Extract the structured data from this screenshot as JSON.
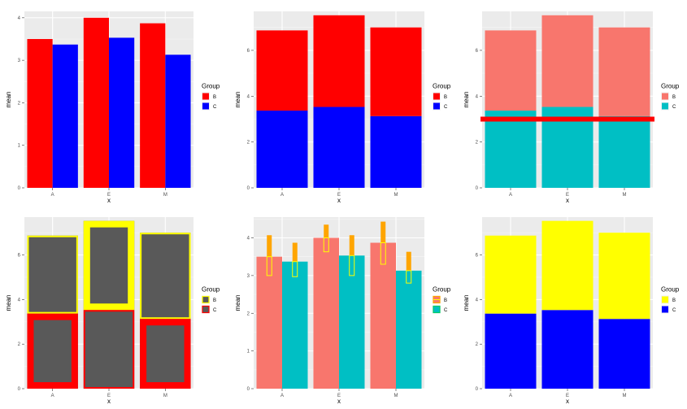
{
  "figure_description": "Six ggplot-style bar chart panels comparing mean by x and Group",
  "chart_data": [
    {
      "panel": "dodged-bar",
      "type": "bar",
      "position": "dodge",
      "categories": [
        "A",
        "E",
        "M"
      ],
      "series": [
        {
          "name": "B",
          "values": [
            3.5,
            4.0,
            3.87
          ],
          "fill": "#ff0000"
        },
        {
          "name": "C",
          "values": [
            3.37,
            3.53,
            3.13
          ],
          "fill": "#0000ff"
        }
      ],
      "xlabel": "x",
      "ylabel": "mean",
      "ylim": [
        0,
        4.15
      ],
      "yticks": [
        "0",
        "1",
        "2",
        "3",
        "4"
      ],
      "legend": {
        "title": "Group",
        "placement": "right"
      },
      "grid": true
    },
    {
      "panel": "stacked-bar",
      "type": "bar",
      "position": "stack",
      "categories": [
        "A",
        "E",
        "M"
      ],
      "series": [
        {
          "name": "B",
          "values": [
            3.5,
            4.0,
            3.87
          ],
          "fill": "#ff0000"
        },
        {
          "name": "C",
          "values": [
            3.37,
            3.53,
            3.13
          ],
          "fill": "#0000ff"
        }
      ],
      "xlabel": "x",
      "ylabel": "mean",
      "ylim": [
        0,
        7.7
      ],
      "yticks": [
        "0",
        "2",
        "4",
        "6"
      ],
      "legend": {
        "title": "Group",
        "placement": "right"
      },
      "grid": true
    },
    {
      "panel": "stacked-bar-hline",
      "type": "bar",
      "position": "stack",
      "categories": [
        "A",
        "E",
        "M"
      ],
      "series": [
        {
          "name": "B",
          "values": [
            3.5,
            4.0,
            3.87
          ],
          "fill": "#f8766d"
        },
        {
          "name": "C",
          "values": [
            3.37,
            3.53,
            3.13
          ],
          "fill": "#00bfc4"
        }
      ],
      "hline": {
        "y": 3.0,
        "color": "#ff0000"
      },
      "xlabel": "x",
      "ylabel": "mean",
      "ylim": [
        0,
        7.7
      ],
      "yticks": [
        "0",
        "2",
        "4",
        "6"
      ],
      "legend": {
        "title": "Group",
        "placement": "right"
      },
      "grid": true
    },
    {
      "panel": "stacked-bar-outlined",
      "type": "bar",
      "position": "stack",
      "categories": [
        "A",
        "E",
        "M"
      ],
      "series": [
        {
          "name": "B",
          "values": [
            3.5,
            4.0,
            3.87
          ],
          "fill": "#595959",
          "outline": "#ffff00"
        },
        {
          "name": "C",
          "values": [
            3.37,
            3.53,
            3.13
          ],
          "fill": "#595959",
          "outline": "#ff0000"
        }
      ],
      "outline_thickness": {
        "B": [
          2,
          8,
          2
        ],
        "C": [
          8,
          2,
          8
        ]
      },
      "xlabel": "x",
      "ylabel": "mean",
      "ylim": [
        0,
        7.7
      ],
      "yticks": [
        "0",
        "2",
        "4",
        "6"
      ],
      "legend": {
        "title": "Group",
        "placement": "right"
      },
      "grid": true
    },
    {
      "panel": "dodged-bar-errorbars",
      "type": "bar",
      "position": "dodge",
      "categories": [
        "A",
        "E",
        "M"
      ],
      "series": [
        {
          "name": "B",
          "values": [
            3.5,
            4.0,
            3.87
          ],
          "fill": "#f8766d",
          "outline": "#ffa500"
        },
        {
          "name": "C",
          "values": [
            3.37,
            3.53,
            3.13
          ],
          "fill": "#00bfc4",
          "outline": "#00cc66"
        }
      ],
      "error_bars": {
        "B": [
          [
            3.0,
            4.07
          ],
          [
            3.63,
            4.35
          ],
          [
            3.3,
            4.43
          ]
        ],
        "C": [
          [
            2.97,
            3.87
          ],
          [
            3.0,
            4.07
          ],
          [
            2.8,
            3.63
          ]
        ],
        "fill": "#ffa500",
        "outline": "#ffff00"
      },
      "xlabel": "x",
      "ylabel": "mean",
      "ylim": [
        0,
        4.55
      ],
      "yticks": [
        "0",
        "1",
        "2",
        "3",
        "4"
      ],
      "legend": {
        "title": "Group",
        "placement": "right"
      },
      "grid": true
    },
    {
      "panel": "stacked-bar-yellow-blue",
      "type": "bar",
      "position": "stack",
      "categories": [
        "A",
        "E",
        "M"
      ],
      "series": [
        {
          "name": "B",
          "values": [
            3.5,
            4.0,
            3.87
          ],
          "fill": "#ffff00"
        },
        {
          "name": "C",
          "values": [
            3.37,
            3.53,
            3.13
          ],
          "fill": "#0000ff"
        }
      ],
      "xlabel": "x",
      "ylabel": "mean",
      "ylim": [
        0,
        7.7
      ],
      "yticks": [
        "0",
        "2",
        "4",
        "6"
      ],
      "legend": {
        "title": "Group",
        "placement": "right"
      },
      "grid": true
    }
  ]
}
